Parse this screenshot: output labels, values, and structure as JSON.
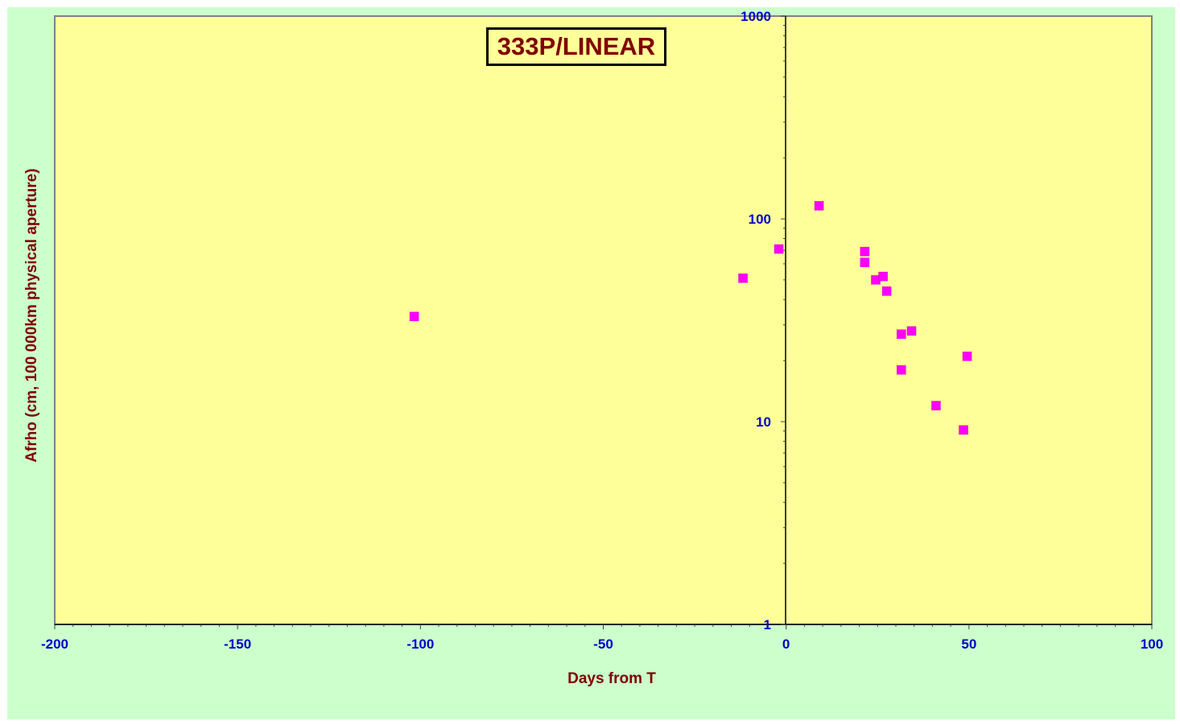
{
  "colors": {
    "outer_background": "#ccffcc",
    "plot_background": "#ffff99",
    "marker": "#ff00ff",
    "tick_label": "#0000cc",
    "axis_title": "#800000"
  },
  "chart_data": {
    "type": "scatter",
    "title": "333P/LINEAR",
    "xlabel": "Days from  T",
    "ylabel": "Afrho  (cm,  100 000km  physical  aperture)",
    "xlim": [
      -200,
      100
    ],
    "ylim": [
      1,
      1000
    ],
    "y_scale": "log",
    "grid": false,
    "legend": "none",
    "x_ticks": [
      "-200",
      "-150",
      "-100",
      "-50",
      "0",
      "50",
      "100"
    ],
    "y_ticks": [
      "1",
      "10",
      "100",
      "1000"
    ],
    "marker": "square",
    "points": [
      {
        "x": -101.7,
        "y": 33
      },
      {
        "x": -11.8,
        "y": 51
      },
      {
        "x": -2,
        "y": 71
      },
      {
        "x": 9,
        "y": 116
      },
      {
        "x": 21.5,
        "y": 69
      },
      {
        "x": 21.5,
        "y": 61
      },
      {
        "x": 24.5,
        "y": 50
      },
      {
        "x": 26.5,
        "y": 52
      },
      {
        "x": 27.5,
        "y": 44
      },
      {
        "x": 31.5,
        "y": 27
      },
      {
        "x": 34.3,
        "y": 28
      },
      {
        "x": 31.5,
        "y": 18
      },
      {
        "x": 41,
        "y": 12
      },
      {
        "x": 48.5,
        "y": 9.1
      },
      {
        "x": 49.5,
        "y": 21
      }
    ]
  }
}
